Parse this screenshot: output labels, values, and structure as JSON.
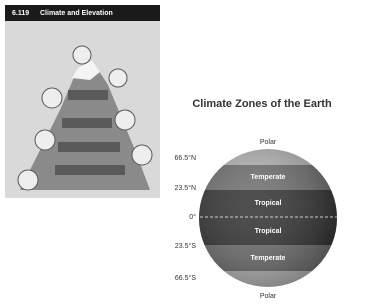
{
  "book_page": {
    "number": "6.119",
    "title": "Climate and Elevation"
  },
  "climate_zones": {
    "title": "Climate Zones of the Earth",
    "top_zone": "Polar",
    "bottom_zone": "Polar",
    "latitudes": [
      "66.5°N",
      "23.5°N",
      "0°",
      "23.5°S",
      "66.5°S"
    ],
    "bands": [
      "Temperate",
      "Tropical",
      "Tropical",
      "Temperate"
    ]
  }
}
